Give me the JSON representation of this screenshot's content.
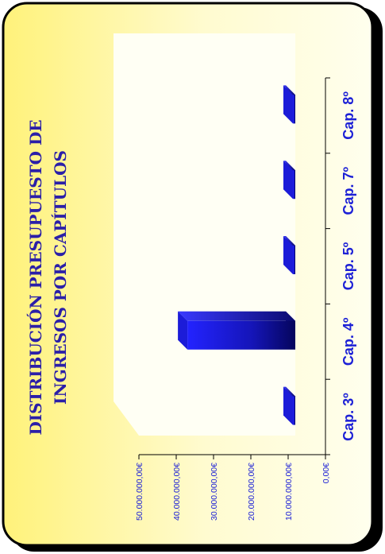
{
  "chart_data": {
    "type": "bar",
    "title_lines": [
      "DISTRIBUCIÓN PRESUPUESTO DE",
      "INGRESOS POR CAPÍTULOS"
    ],
    "categories": [
      "Cap. 3º",
      "Cap. 4º",
      "Cap. 5º",
      "Cap. 7º",
      "Cap. 8º"
    ],
    "values": [
      4000000,
      37000000,
      200000,
      3500000,
      100000
    ],
    "y_ticks": [
      "0,00€",
      "10.000.000,00€",
      "20.000.000,00€",
      "30.000.000,00€",
      "40.000.000,00€",
      "50.000.000,00€"
    ],
    "ylim": [
      0,
      50000000
    ],
    "orientation": "rotated-90-ccw",
    "colors": {
      "bar": "#1a1ae0",
      "bar_dark": "#04045a",
      "title": "#2b1fa8",
      "labels": "#1d21d6",
      "background_light": "#fffff0",
      "background_yellow": "#fff27a",
      "border": "#000000"
    }
  }
}
